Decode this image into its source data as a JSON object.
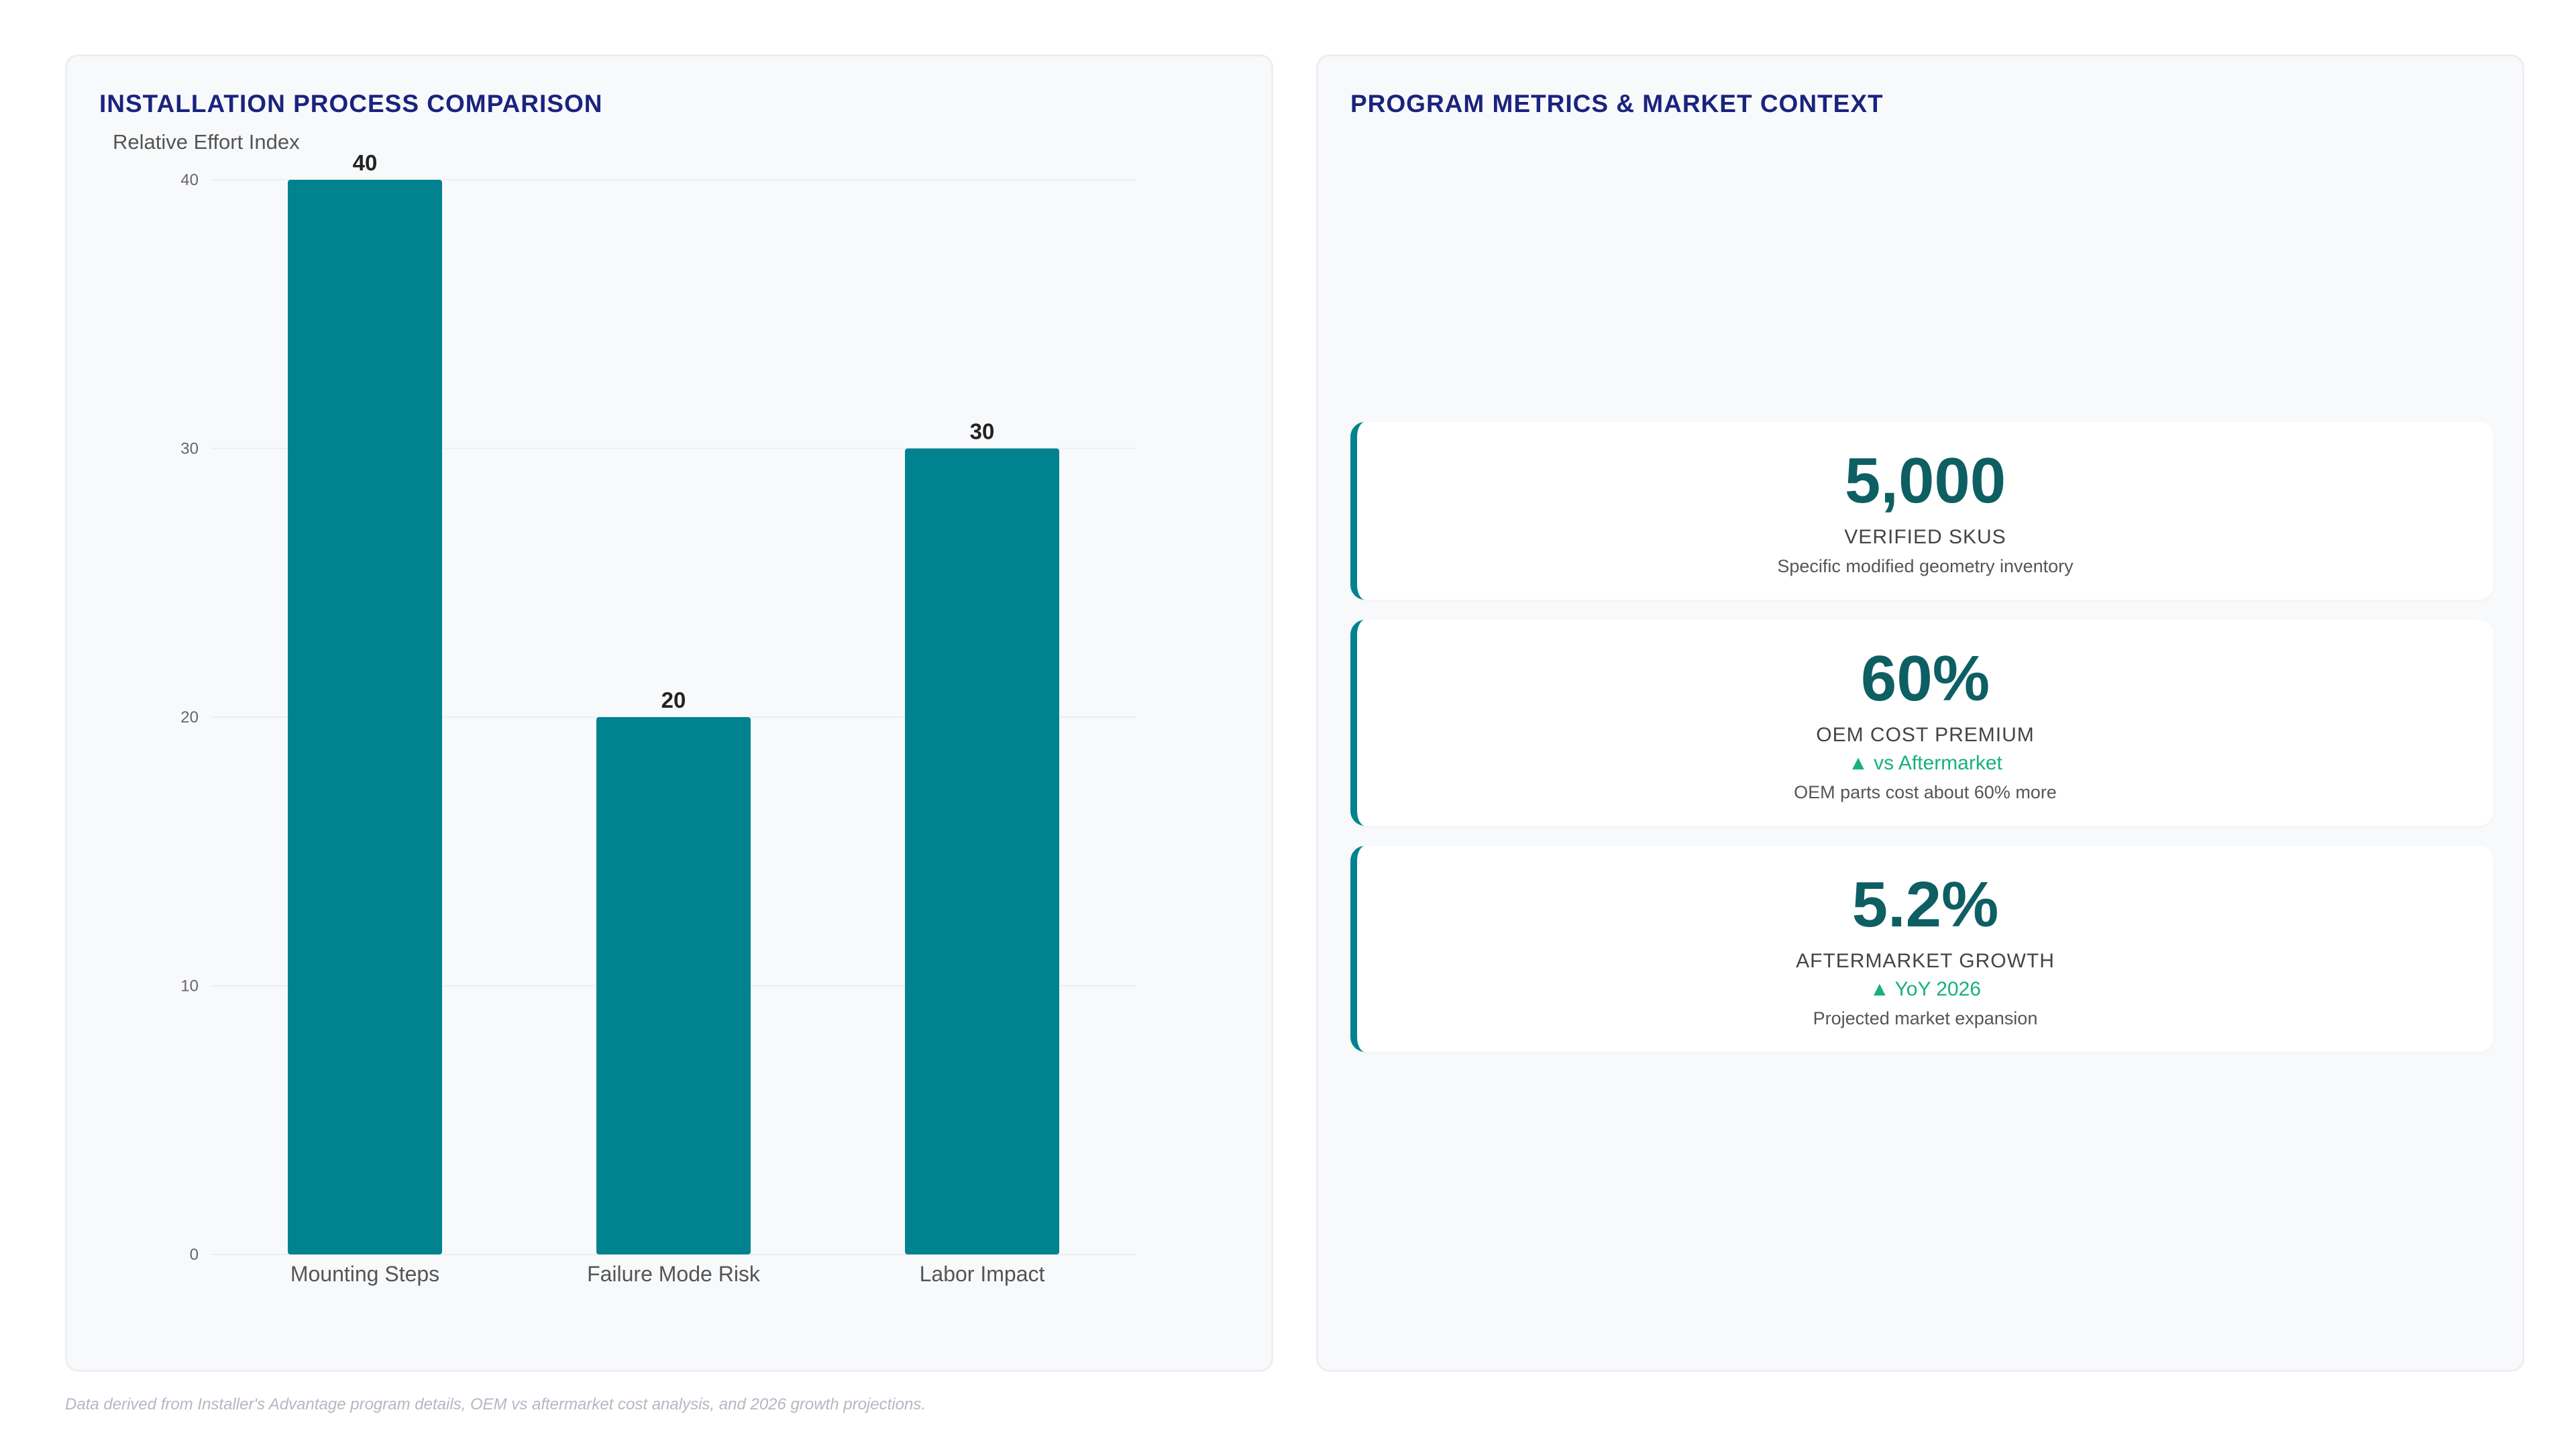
{
  "left_panel": {
    "title": "INSTALLATION PROCESS COMPARISON"
  },
  "chart_data": {
    "type": "bar",
    "title": "",
    "xlabel": "",
    "ylabel": "Relative Effort Index",
    "categories": [
      "Mounting Steps",
      "Failure Mode Risk",
      "Labor Impact"
    ],
    "values": [
      40,
      20,
      30
    ],
    "ylim": [
      0,
      40
    ],
    "yticks": [
      0,
      10,
      20,
      30,
      40
    ],
    "data_labels": true,
    "grid": true,
    "legend": "none",
    "colors": {
      "bar": "#00838f",
      "grid": "#eceef2"
    }
  },
  "right_panel": {
    "title": "PROGRAM METRICS & MARKET CONTEXT",
    "metrics": [
      {
        "value": "5,000",
        "label": "VERIFIED SKUS",
        "trend": "",
        "description": "Specific modified geometry inventory"
      },
      {
        "value": "60%",
        "label": "OEM COST PREMIUM",
        "trend": "▲ vs Aftermarket",
        "description": "OEM parts cost about 60% more"
      },
      {
        "value": "5.2%",
        "label": "AFTERMARKET GROWTH",
        "trend": "▲ YoY 2026",
        "description": "Projected market expansion"
      }
    ]
  },
  "footer": {
    "note": "Data derived from Installer's Advantage program details, OEM vs aftermarket cost analysis, and 2026 growth projections."
  },
  "colors": {
    "accent": "#00838f",
    "title": "#1a237e",
    "metric_value": "#0d5f63",
    "trend_up": "#18b07e"
  }
}
